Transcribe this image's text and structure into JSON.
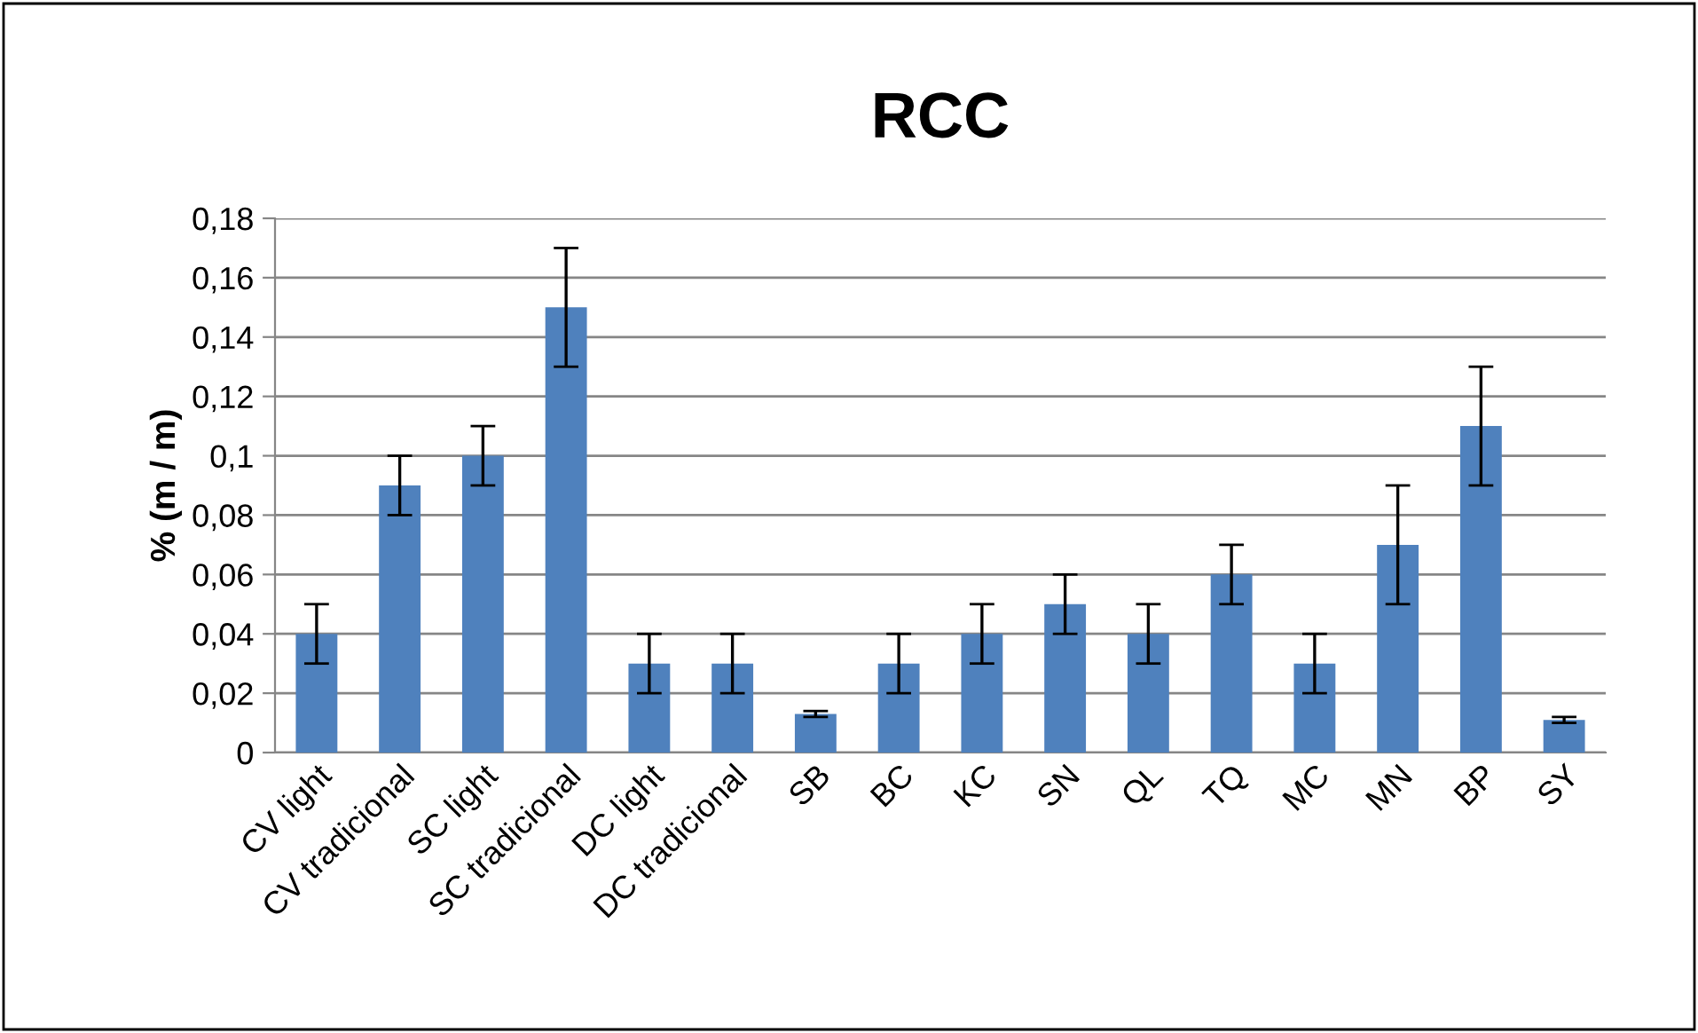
{
  "chart_data": {
    "type": "bar",
    "title": "RCC",
    "ylabel": "% (m / m)",
    "categories": [
      "CV light",
      "CV tradicional",
      "SC light",
      "SC tradicional",
      "DC light",
      "DC tradicional",
      "SB",
      "BC",
      "KC",
      "SN",
      "QL",
      "TQ",
      "MC",
      "MN",
      "BP",
      "SY"
    ],
    "values": [
      0.04,
      0.09,
      0.1,
      0.15,
      0.03,
      0.03,
      0.013,
      0.03,
      0.04,
      0.05,
      0.04,
      0.06,
      0.03,
      0.07,
      0.11,
      0.011
    ],
    "errors": [
      0.01,
      0.01,
      0.01,
      0.02,
      0.01,
      0.01,
      0.001,
      0.01,
      0.01,
      0.01,
      0.01,
      0.01,
      0.01,
      0.02,
      0.02,
      0.001
    ],
    "color": "#4f81bd",
    "ylim": [
      0,
      0.18
    ],
    "yticks": [
      {
        "value": 0,
        "label": "0"
      },
      {
        "value": 0.02,
        "label": "0,02"
      },
      {
        "value": 0.04,
        "label": "0,04"
      },
      {
        "value": 0.06,
        "label": "0,06"
      },
      {
        "value": 0.08,
        "label": "0,08"
      },
      {
        "value": 0.1,
        "label": "0,1"
      },
      {
        "value": 0.12,
        "label": "0,12"
      },
      {
        "value": 0.14,
        "label": "0,14"
      },
      {
        "value": 0.16,
        "label": "0,16"
      },
      {
        "value": 0.18,
        "label": "0,18"
      }
    ],
    "grid": "y"
  }
}
